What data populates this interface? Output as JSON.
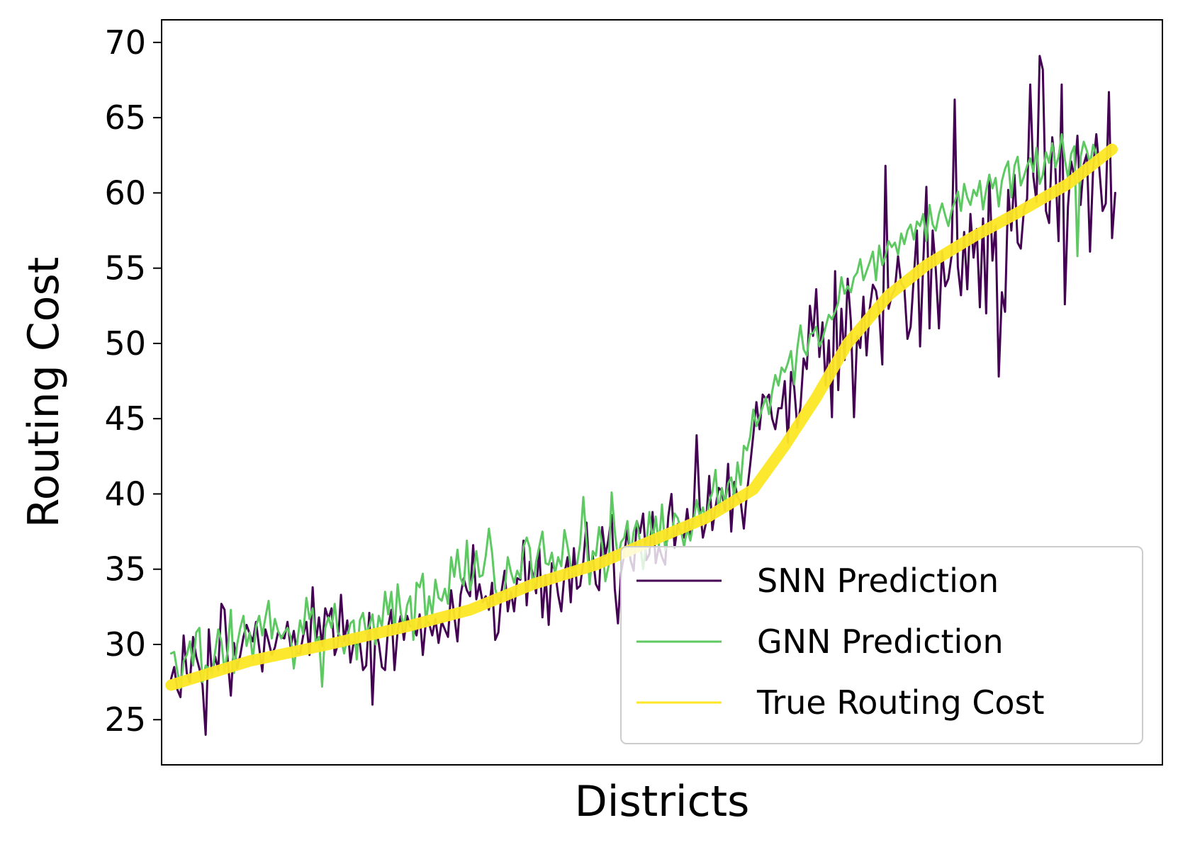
{
  "chart_data": {
    "type": "line",
    "title": "",
    "xlabel": "Districts",
    "ylabel": "Routing Cost",
    "xlim": [
      -3,
      315
    ],
    "ylim": [
      22,
      71.5
    ],
    "yticks": [
      25,
      30,
      35,
      40,
      45,
      50,
      55,
      60,
      65,
      70
    ],
    "x_ticks_visible": false,
    "grid": false,
    "legend_position": "lower-right",
    "n_districts": 300,
    "series": [
      {
        "name": "SNN Prediction",
        "color": "#440154",
        "values": [
          27.7,
          28.5,
          27.0,
          26.5,
          30.6,
          28.1,
          27.5,
          30.5,
          29.2,
          28.4,
          27.3,
          24.0,
          31.0,
          28.0,
          29.2,
          28.3,
          32.7,
          32.3,
          29.0,
          26.6,
          30.1,
          28.4,
          29.3,
          30.5,
          31.3,
          30.7,
          30.2,
          31.5,
          29.8,
          28.2,
          31.0,
          30.2,
          29.3,
          29.8,
          30.8,
          30.5,
          30.4,
          31.5,
          29.8,
          30.9,
          29.4,
          29.4,
          30.6,
          31.5,
          29.3,
          33.8,
          30.1,
          31.8,
          29.9,
          32.4,
          31.7,
          32.4,
          29.3,
          30.0,
          33.3,
          30.2,
          31.6,
          28.8,
          30.1,
          30.0,
          30.1,
          28.3,
          28.6,
          32.1,
          26.0,
          31.0,
          30.1,
          28.5,
          28.3,
          31.2,
          32.3,
          28.3,
          30.9,
          31.9,
          30.3,
          31.9,
          31.2,
          31.2,
          30.6,
          32.0,
          29.3,
          31.6,
          31.4,
          30.6,
          31.7,
          30.1,
          31.5,
          31.0,
          30.5,
          33.6,
          31.9,
          30.2,
          33.3,
          34.4,
          33.6,
          33.2,
          36.6,
          33.0,
          34.0,
          32.8,
          33.2,
          32.3,
          34.1,
          30.3,
          30.8,
          33.5,
          34.9,
          32.2,
          33.5,
          32.2,
          34.4,
          34.3,
          36.9,
          32.6,
          35.5,
          34.6,
          33.4,
          36.4,
          31.8,
          34.6,
          31.3,
          35.4,
          34.9,
          33.3,
          32.2,
          34.7,
          35.8,
          32.8,
          36.4,
          33.7,
          33.9,
          35.5,
          38.1,
          34.6,
          35.9,
          34.0,
          33.6,
          37.8,
          35.9,
          37.0,
          38.6,
          33.7,
          31.4,
          34.8,
          36.0,
          37.6,
          35.6,
          34.9,
          38.2,
          37.4,
          38.7,
          35.6,
          36.0,
          38.8,
          35.4,
          36.5,
          35.8,
          35.3,
          38.5,
          40.0,
          36.4,
          38.0,
          37.4,
          37.1,
          39.0,
          37.1,
          38.5,
          43.9,
          39.1,
          37.1,
          38.1,
          41.2,
          37.6,
          39.1,
          40.4,
          40.2,
          38.9,
          42.0,
          37.5,
          40.8,
          39.8,
          39.5,
          37.7,
          40.1,
          41.9,
          43.9,
          46.1,
          44.3,
          46.6,
          46.3,
          46.6,
          45.0,
          44.3,
          45.7,
          45.7,
          47.5,
          43.4,
          48.1,
          47.1,
          44.4,
          45.8,
          49.0,
          48.3,
          52.5,
          50.5,
          53.6,
          49.1,
          51.4,
          47.2,
          50.2,
          45.1,
          54.8,
          46.9,
          52.3,
          48.9,
          54.3,
          51.5,
          45.1,
          50.5,
          49.7,
          53.1,
          49.2,
          52.3,
          53.9,
          53.5,
          52.1,
          48.6,
          61.8,
          52.3,
          53.2,
          53.6,
          55.8,
          54.0,
          53.7,
          50.3,
          51.1,
          54.4,
          57.5,
          49.8,
          55.3,
          60.4,
          51.0,
          57.5,
          54.9,
          51.0,
          56.1,
          53.8,
          54.3,
          55.8,
          66.2,
          55.1,
          53.2,
          57.4,
          53.6,
          58.6,
          55.7,
          57.6,
          52.4,
          58.3,
          52.0,
          61.2,
          55.5,
          57.8,
          47.8,
          53.4,
          52.1,
          60.2,
          57.5,
          61.2,
          56.7,
          56.3,
          58.9,
          59.6,
          67.2,
          61.1,
          59.4,
          69.1,
          68.2,
          58.8,
          58.0,
          63.7,
          61.6,
          56.8,
          67.2,
          52.6,
          59.1,
          62.1,
          61.1,
          63.8,
          59.2,
          61.9,
          62.6,
          56.1,
          61.7,
          63.9,
          61.5,
          58.8,
          59.3,
          66.7,
          57.0,
          60.0
        ]
      },
      {
        "name": "GNN Prediction",
        "color": "#5ec962",
        "values": [
          29.4,
          29.5,
          28.2,
          27.1,
          28.9,
          29.3,
          30.2,
          28.6,
          30.8,
          31.1,
          27.5,
          28.6,
          28.4,
          28.0,
          29.5,
          31.0,
          30.2,
          28.2,
          29.6,
          32.3,
          28.1,
          30.0,
          31.1,
          31.9,
          29.9,
          30.8,
          29.0,
          31.2,
          31.9,
          30.6,
          31.8,
          32.9,
          30.4,
          31.7,
          30.9,
          30.4,
          30.8,
          31.1,
          30.5,
          28.4,
          30.0,
          31.6,
          30.7,
          33.1,
          31.7,
          32.4,
          30.1,
          30.5,
          27.2,
          31.1,
          31.8,
          31.1,
          32.7,
          30.8,
          30.4,
          29.4,
          30.5,
          31.4,
          31.6,
          29.0,
          31.6,
          32.1,
          30.7,
          31.2,
          32.0,
          30.0,
          31.9,
          31.2,
          33.5,
          32.0,
          33.5,
          30.8,
          34.0,
          32.1,
          31.1,
          32.6,
          33.2,
          30.3,
          34.1,
          33.8,
          34.7,
          31.4,
          33.2,
          32.0,
          34.3,
          33.1,
          32.9,
          33.7,
          32.7,
          35.8,
          34.5,
          36.3,
          34.4,
          33.9,
          36.9,
          33.6,
          34.6,
          36.2,
          34.5,
          34.6,
          35.9,
          37.7,
          36.1,
          33.7,
          32.9,
          33.3,
          33.6,
          35.8,
          34.8,
          34.1,
          34.9,
          34.4,
          36.5,
          37.1,
          36.4,
          33.7,
          35.5,
          36.5,
          37.5,
          35.4,
          35.3,
          36.1,
          34.7,
          35.8,
          35.2,
          37.6,
          36.5,
          35.2,
          34.7,
          35.3,
          36.7,
          39.8,
          36.9,
          34.0,
          36.2,
          35.9,
          37.8,
          36.6,
          34.2,
          35.2,
          40.1,
          37.5,
          35.7,
          36.8,
          37.1,
          38.2,
          35.9,
          37.5,
          38.2,
          36.8,
          35.0,
          36.6,
          38.8,
          36.8,
          38.5,
          36.6,
          39.3,
          36.3,
          37.2,
          37.1,
          38.7,
          38.4,
          37.6,
          36.5,
          37.7,
          36.9,
          38.1,
          39.6,
          38.5,
          39.1,
          38.2,
          39.5,
          40.1,
          41.6,
          38.7,
          40.4,
          39.4,
          40.7,
          41.1,
          39.8,
          42.1,
          40.6,
          43.2,
          42.9,
          43.8,
          45.6,
          44.5,
          45.1,
          45.8,
          46.4,
          45.3,
          46.8,
          47.9,
          47.2,
          48.4,
          48.1,
          48.7,
          49.5,
          47.3,
          49.7,
          51.2,
          49.6,
          49.2,
          50.6,
          50.7,
          51.1,
          49.8,
          50.3,
          51.1,
          51.9,
          51.6,
          52.1,
          52.7,
          54.4,
          53.3,
          53.8,
          53.4,
          54.4,
          54.7,
          55.6,
          54.2,
          54.8,
          55.4,
          56.1,
          54.2,
          56.5,
          55.2,
          55.8,
          56.8,
          56.4,
          56.7,
          55.9,
          57.3,
          56.6,
          57.5,
          57.9,
          56.9,
          58.1,
          57.8,
          58.6,
          56.8,
          59.2,
          57.9,
          57.5,
          58.6,
          59.3,
          58.5,
          57.8,
          58.8,
          59.4,
          60.1,
          58.8,
          60.6,
          59.7,
          59.2,
          60.2,
          59.8,
          60.8,
          58.9,
          60.2,
          61.2,
          60.3,
          61.0,
          59.1,
          60.8,
          61.6,
          62.1,
          59.7,
          61.8,
          62.4,
          60.5,
          61.1,
          61.8,
          62.3,
          61.4,
          63.0,
          60.6,
          61.2,
          62.7,
          62.0,
          63.3,
          61.7,
          62.4,
          63.9,
          62.2,
          61.0,
          62.6,
          63.1,
          55.8,
          62.4,
          63.4,
          62.8,
          61.9,
          63.2,
          62.5
        ]
      },
      {
        "name": "True Routing Cost",
        "color": "#fde725",
        "start": 27.3,
        "end": 62.9,
        "knots": [
          [
            0,
            27.3
          ],
          [
            25,
            28.9
          ],
          [
            50,
            30.0
          ],
          [
            75,
            31.2
          ],
          [
            95,
            32.3
          ],
          [
            115,
            34.0
          ],
          [
            135,
            35.3
          ],
          [
            155,
            37.1
          ],
          [
            170,
            38.4
          ],
          [
            185,
            40.3
          ],
          [
            195,
            43.2
          ],
          [
            205,
            46.4
          ],
          [
            215,
            50.0
          ],
          [
            228,
            53.2
          ],
          [
            240,
            55.2
          ],
          [
            255,
            57.1
          ],
          [
            270,
            58.8
          ],
          [
            285,
            60.6
          ],
          [
            299,
            62.9
          ]
        ]
      }
    ]
  }
}
